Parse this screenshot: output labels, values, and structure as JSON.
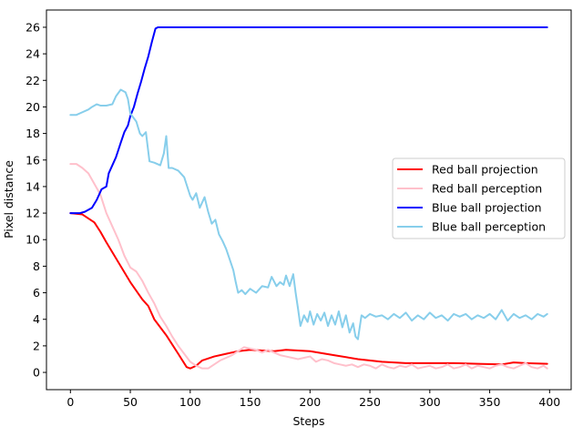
{
  "chart_data": {
    "type": "line",
    "xlabel": "Steps",
    "ylabel": "Pixel distance",
    "xlim": [
      -20,
      418
    ],
    "ylim": [
      -1.3,
      27.3
    ],
    "xticks": [
      0,
      50,
      100,
      150,
      200,
      250,
      300,
      350,
      400
    ],
    "yticks": [
      0,
      2,
      4,
      6,
      8,
      10,
      12,
      14,
      16,
      18,
      20,
      22,
      24,
      26
    ],
    "grid": false,
    "legend_position": "center-right",
    "series": [
      {
        "name": "Red ball projection",
        "color": "#ff0000",
        "points": [
          [
            0,
            12
          ],
          [
            10,
            11.9
          ],
          [
            20,
            11.3
          ],
          [
            25,
            10.6
          ],
          [
            30,
            9.8
          ],
          [
            40,
            8.3
          ],
          [
            50,
            6.8
          ],
          [
            60,
            5.5
          ],
          [
            65,
            5.0
          ],
          [
            70,
            4.0
          ],
          [
            80,
            2.8
          ],
          [
            90,
            1.4
          ],
          [
            97,
            0.4
          ],
          [
            100,
            0.3
          ],
          [
            105,
            0.5
          ],
          [
            110,
            0.9
          ],
          [
            120,
            1.2
          ],
          [
            130,
            1.4
          ],
          [
            140,
            1.6
          ],
          [
            150,
            1.7
          ],
          [
            170,
            1.6
          ],
          [
            180,
            1.7
          ],
          [
            200,
            1.6
          ],
          [
            220,
            1.3
          ],
          [
            240,
            1.0
          ],
          [
            260,
            0.8
          ],
          [
            280,
            0.7
          ],
          [
            300,
            0.7
          ],
          [
            320,
            0.7
          ],
          [
            340,
            0.65
          ],
          [
            360,
            0.6
          ],
          [
            370,
            0.75
          ],
          [
            380,
            0.7
          ],
          [
            398,
            0.65
          ]
        ]
      },
      {
        "name": "Red ball perception",
        "color": "#ffc0cb",
        "points": [
          [
            0,
            15.7
          ],
          [
            5,
            15.7
          ],
          [
            10,
            15.4
          ],
          [
            15,
            15.0
          ],
          [
            20,
            14.2
          ],
          [
            25,
            13.4
          ],
          [
            30,
            12.0
          ],
          [
            35,
            11.0
          ],
          [
            40,
            10.0
          ],
          [
            45,
            8.8
          ],
          [
            50,
            7.9
          ],
          [
            55,
            7.6
          ],
          [
            60,
            6.9
          ],
          [
            65,
            6.0
          ],
          [
            70,
            5.2
          ],
          [
            75,
            4.2
          ],
          [
            80,
            3.5
          ],
          [
            85,
            2.7
          ],
          [
            90,
            2.0
          ],
          [
            95,
            1.4
          ],
          [
            100,
            0.8
          ],
          [
            105,
            0.5
          ],
          [
            110,
            0.3
          ],
          [
            115,
            0.3
          ],
          [
            120,
            0.6
          ],
          [
            125,
            0.9
          ],
          [
            130,
            1.1
          ],
          [
            135,
            1.3
          ],
          [
            140,
            1.6
          ],
          [
            145,
            1.9
          ],
          [
            150,
            1.8
          ],
          [
            155,
            1.7
          ],
          [
            160,
            1.5
          ],
          [
            165,
            1.7
          ],
          [
            170,
            1.5
          ],
          [
            175,
            1.3
          ],
          [
            180,
            1.2
          ],
          [
            185,
            1.1
          ],
          [
            190,
            1.0
          ],
          [
            195,
            1.1
          ],
          [
            200,
            1.2
          ],
          [
            205,
            0.8
          ],
          [
            210,
            1.0
          ],
          [
            215,
            0.9
          ],
          [
            220,
            0.7
          ],
          [
            225,
            0.6
          ],
          [
            230,
            0.5
          ],
          [
            235,
            0.6
          ],
          [
            240,
            0.4
          ],
          [
            245,
            0.6
          ],
          [
            250,
            0.5
          ],
          [
            255,
            0.3
          ],
          [
            260,
            0.6
          ],
          [
            265,
            0.4
          ],
          [
            270,
            0.3
          ],
          [
            275,
            0.5
          ],
          [
            280,
            0.4
          ],
          [
            285,
            0.6
          ],
          [
            290,
            0.3
          ],
          [
            295,
            0.4
          ],
          [
            300,
            0.5
          ],
          [
            305,
            0.3
          ],
          [
            310,
            0.4
          ],
          [
            315,
            0.6
          ],
          [
            320,
            0.3
          ],
          [
            325,
            0.4
          ],
          [
            330,
            0.6
          ],
          [
            335,
            0.3
          ],
          [
            340,
            0.5
          ],
          [
            345,
            0.4
          ],
          [
            350,
            0.3
          ],
          [
            355,
            0.5
          ],
          [
            360,
            0.6
          ],
          [
            365,
            0.4
          ],
          [
            370,
            0.3
          ],
          [
            375,
            0.5
          ],
          [
            380,
            0.7
          ],
          [
            385,
            0.4
          ],
          [
            390,
            0.3
          ],
          [
            395,
            0.5
          ],
          [
            398,
            0.3
          ]
        ]
      },
      {
        "name": "Blue ball projection",
        "color": "#0000ff",
        "points": [
          [
            0,
            12
          ],
          [
            8,
            12.0
          ],
          [
            12,
            12.1
          ],
          [
            18,
            12.4
          ],
          [
            22,
            13.0
          ],
          [
            26,
            13.8
          ],
          [
            30,
            14.0
          ],
          [
            32,
            15.0
          ],
          [
            35,
            15.6
          ],
          [
            38,
            16.2
          ],
          [
            42,
            17.3
          ],
          [
            45,
            18.1
          ],
          [
            48,
            18.6
          ],
          [
            50,
            19.3
          ],
          [
            53,
            20.0
          ],
          [
            56,
            21.0
          ],
          [
            59,
            21.9
          ],
          [
            62,
            22.9
          ],
          [
            65,
            23.8
          ],
          [
            68,
            24.9
          ],
          [
            71,
            25.9
          ],
          [
            73,
            26.0
          ],
          [
            100,
            26.0
          ],
          [
            200,
            26.0
          ],
          [
            300,
            26.0
          ],
          [
            398,
            26.0
          ]
        ]
      },
      {
        "name": "Blue ball perception",
        "color": "#87ceeb",
        "points": [
          [
            0,
            19.4
          ],
          [
            5,
            19.4
          ],
          [
            10,
            19.6
          ],
          [
            15,
            19.8
          ],
          [
            18,
            20.0
          ],
          [
            22,
            20.2
          ],
          [
            25,
            20.1
          ],
          [
            30,
            20.1
          ],
          [
            35,
            20.2
          ],
          [
            38,
            20.8
          ],
          [
            42,
            21.3
          ],
          [
            46,
            21.1
          ],
          [
            48,
            20.6
          ],
          [
            50,
            19.5
          ],
          [
            55,
            18.9
          ],
          [
            58,
            18.0
          ],
          [
            60,
            17.8
          ],
          [
            63,
            18.1
          ],
          [
            66,
            15.9
          ],
          [
            70,
            15.8
          ],
          [
            75,
            15.6
          ],
          [
            78,
            16.5
          ],
          [
            80,
            17.8
          ],
          [
            82,
            15.4
          ],
          [
            85,
            15.4
          ],
          [
            90,
            15.2
          ],
          [
            95,
            14.7
          ],
          [
            100,
            13.3
          ],
          [
            102,
            13.0
          ],
          [
            105,
            13.5
          ],
          [
            108,
            12.4
          ],
          [
            112,
            13.2
          ],
          [
            115,
            12.1
          ],
          [
            118,
            11.2
          ],
          [
            121,
            11.5
          ],
          [
            124,
            10.4
          ],
          [
            127,
            9.9
          ],
          [
            130,
            9.3
          ],
          [
            133,
            8.5
          ],
          [
            136,
            7.7
          ],
          [
            138,
            6.8
          ],
          [
            140,
            6.0
          ],
          [
            143,
            6.2
          ],
          [
            146,
            5.9
          ],
          [
            150,
            6.3
          ],
          [
            155,
            6.0
          ],
          [
            160,
            6.5
          ],
          [
            165,
            6.4
          ],
          [
            168,
            7.2
          ],
          [
            172,
            6.5
          ],
          [
            175,
            6.8
          ],
          [
            178,
            6.6
          ],
          [
            180,
            7.3
          ],
          [
            183,
            6.5
          ],
          [
            186,
            7.4
          ],
          [
            188,
            6.0
          ],
          [
            190,
            4.8
          ],
          [
            192,
            3.5
          ],
          [
            195,
            4.3
          ],
          [
            198,
            3.8
          ],
          [
            200,
            4.6
          ],
          [
            203,
            3.6
          ],
          [
            206,
            4.4
          ],
          [
            209,
            3.9
          ],
          [
            212,
            4.5
          ],
          [
            215,
            3.5
          ],
          [
            218,
            4.3
          ],
          [
            221,
            3.6
          ],
          [
            224,
            4.6
          ],
          [
            227,
            3.4
          ],
          [
            230,
            4.3
          ],
          [
            233,
            3.0
          ],
          [
            236,
            3.7
          ],
          [
            238,
            2.7
          ],
          [
            240,
            2.5
          ],
          [
            243,
            4.3
          ],
          [
            246,
            4.1
          ],
          [
            250,
            4.4
          ],
          [
            255,
            4.2
          ],
          [
            260,
            4.3
          ],
          [
            265,
            4.0
          ],
          [
            270,
            4.4
          ],
          [
            275,
            4.1
          ],
          [
            280,
            4.5
          ],
          [
            285,
            3.9
          ],
          [
            290,
            4.3
          ],
          [
            295,
            4.0
          ],
          [
            300,
            4.5
          ],
          [
            305,
            4.1
          ],
          [
            310,
            4.3
          ],
          [
            315,
            3.9
          ],
          [
            320,
            4.4
          ],
          [
            325,
            4.2
          ],
          [
            330,
            4.4
          ],
          [
            335,
            4.0
          ],
          [
            340,
            4.3
          ],
          [
            345,
            4.1
          ],
          [
            350,
            4.4
          ],
          [
            355,
            4.0
          ],
          [
            360,
            4.7
          ],
          [
            365,
            3.9
          ],
          [
            370,
            4.4
          ],
          [
            375,
            4.1
          ],
          [
            380,
            4.3
          ],
          [
            385,
            4.0
          ],
          [
            390,
            4.4
          ],
          [
            395,
            4.2
          ],
          [
            398,
            4.4
          ]
        ]
      }
    ]
  }
}
